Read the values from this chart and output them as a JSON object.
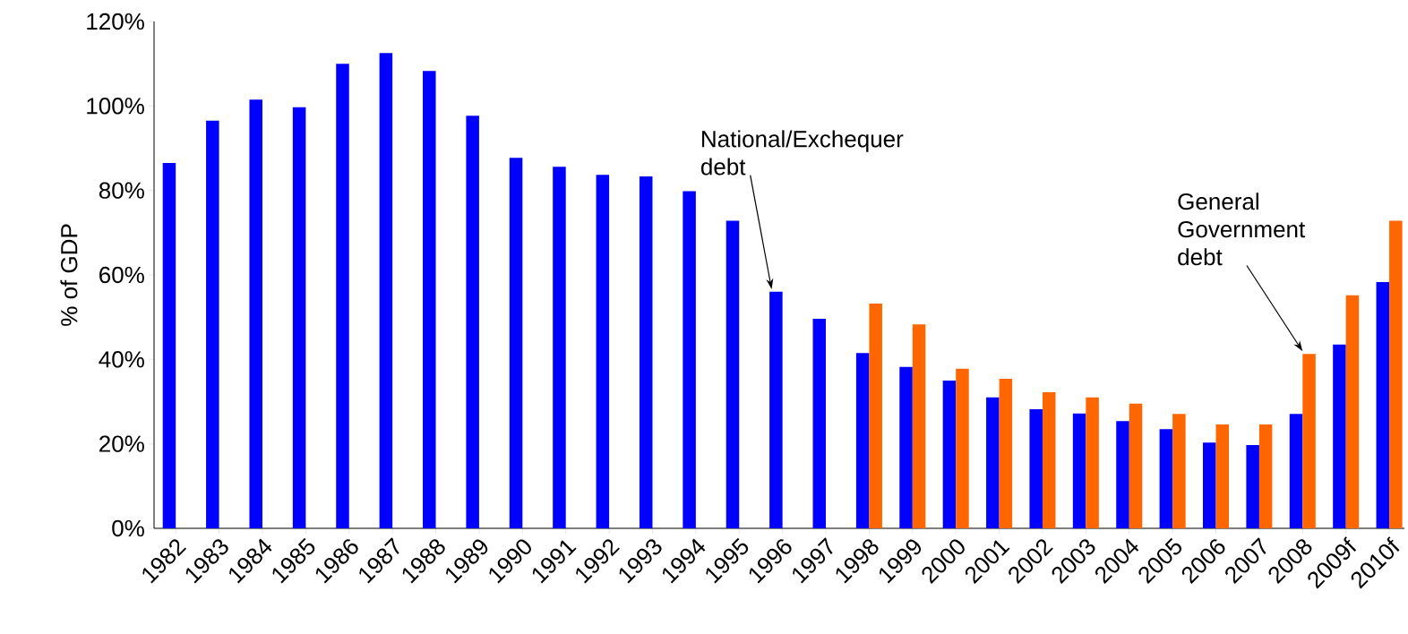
{
  "chart_data": {
    "type": "bar",
    "ylabel": "% of GDP",
    "categories": [
      "1982",
      "1983",
      "1984",
      "1985",
      "1986",
      "1987",
      "1988",
      "1989",
      "1990",
      "1991",
      "1992",
      "1993",
      "1994",
      "1995",
      "1996",
      "1997",
      "1998",
      "1999",
      "2000",
      "2001",
      "2002",
      "2003",
      "2004",
      "2005",
      "2006",
      "2007",
      "2008",
      "2009f",
      "2010f"
    ],
    "series": [
      {
        "color": "#0000ff",
        "values": [
          86.5,
          96.5,
          101.5,
          99.7,
          110,
          112.5,
          108.3,
          97.7,
          87.7,
          85.6,
          83.7,
          83.3,
          79.8,
          72.8,
          56,
          49.6,
          41.5,
          38.2,
          35,
          31,
          28.2,
          27.2,
          25.4,
          23.5,
          20.3,
          19.7,
          27.1,
          43.5,
          58.3
        ]
      },
      {
        "color": "#ff6600",
        "values": [
          null,
          null,
          null,
          null,
          null,
          null,
          null,
          null,
          null,
          null,
          null,
          null,
          null,
          null,
          null,
          null,
          53.2,
          48.3,
          37.8,
          35.4,
          32.2,
          31,
          29.5,
          27.1,
          24.6,
          24.6,
          41.3,
          55.2,
          72.8
        ]
      }
    ],
    "ylim": [
      0,
      120
    ],
    "yticks": [
      {
        "value": 0,
        "label": "0%"
      },
      {
        "value": 20,
        "label": "20%"
      },
      {
        "value": 40,
        "label": "40%"
      },
      {
        "value": 60,
        "label": "60%"
      },
      {
        "value": 80,
        "label": "80%"
      },
      {
        "value": 100,
        "label": "100%"
      },
      {
        "value": 120,
        "label": "120%"
      }
    ],
    "annotations": [
      "National/Exchequer debt",
      "General Government debt"
    ]
  }
}
